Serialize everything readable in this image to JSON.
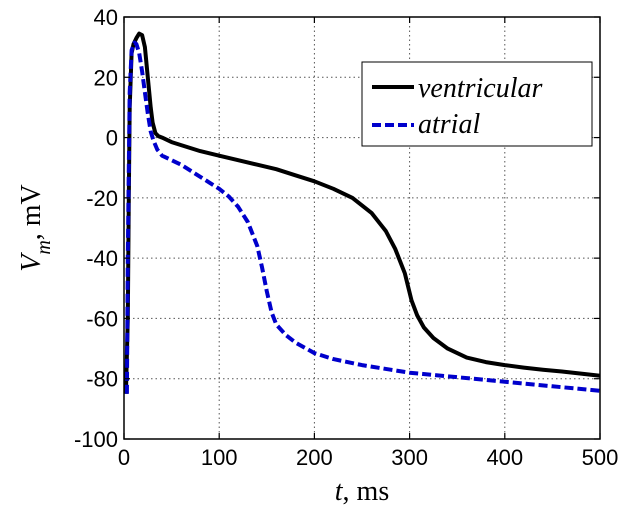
{
  "chart_data": {
    "type": "line",
    "xlabel_var": "t",
    "xlabel_unit": ", ms",
    "ylabel_var": "V",
    "ylabel_sub": "m",
    "ylabel_unit": ", mV",
    "xlim": [
      0,
      500
    ],
    "ylim": [
      -100,
      40
    ],
    "xticks": [
      0,
      100,
      200,
      300,
      400,
      500
    ],
    "yticks": [
      -100,
      -80,
      -60,
      -40,
      -20,
      0,
      20,
      40
    ],
    "grid": true,
    "legend_position": "top-right",
    "series": [
      {
        "name": "ventricular",
        "color": "#000000",
        "dash": "solid",
        "points": [
          [
            2,
            -85
          ],
          [
            4,
            -60
          ],
          [
            5,
            -20
          ],
          [
            6,
            10
          ],
          [
            8,
            28
          ],
          [
            10,
            31
          ],
          [
            13,
            33
          ],
          [
            16,
            34.5
          ],
          [
            19,
            34
          ],
          [
            22,
            30
          ],
          [
            25,
            20
          ],
          [
            28,
            10
          ],
          [
            30,
            5
          ],
          [
            33,
            1.5
          ],
          [
            36,
            0.5
          ],
          [
            40,
            0
          ],
          [
            50,
            -1.5
          ],
          [
            60,
            -2.5
          ],
          [
            80,
            -4.5
          ],
          [
            100,
            -6
          ],
          [
            120,
            -7.5
          ],
          [
            140,
            -9
          ],
          [
            160,
            -10.5
          ],
          [
            180,
            -12.5
          ],
          [
            200,
            -14.5
          ],
          [
            220,
            -17
          ],
          [
            240,
            -20
          ],
          [
            260,
            -25
          ],
          [
            275,
            -31
          ],
          [
            285,
            -37
          ],
          [
            295,
            -45
          ],
          [
            302,
            -54
          ],
          [
            308,
            -59
          ],
          [
            315,
            -63
          ],
          [
            325,
            -66.5
          ],
          [
            340,
            -70
          ],
          [
            360,
            -73
          ],
          [
            380,
            -74.5
          ],
          [
            400,
            -75.5
          ],
          [
            420,
            -76.3
          ],
          [
            440,
            -77
          ],
          [
            460,
            -77.6
          ],
          [
            480,
            -78.3
          ],
          [
            500,
            -79
          ]
        ]
      },
      {
        "name": "atrial",
        "color": "#0000cc",
        "dash": "dashed",
        "points": [
          [
            3,
            -85
          ],
          [
            4,
            -40
          ],
          [
            5,
            -10
          ],
          [
            6,
            15
          ],
          [
            8,
            29
          ],
          [
            11,
            31.5
          ],
          [
            13,
            31
          ],
          [
            16,
            28
          ],
          [
            19,
            22
          ],
          [
            22,
            15
          ],
          [
            25,
            8
          ],
          [
            28,
            2
          ],
          [
            31,
            -1
          ],
          [
            35,
            -4
          ],
          [
            40,
            -6
          ],
          [
            50,
            -7.5
          ],
          [
            60,
            -9
          ],
          [
            70,
            -11
          ],
          [
            80,
            -13
          ],
          [
            90,
            -15
          ],
          [
            100,
            -17
          ],
          [
            110,
            -19.5
          ],
          [
            120,
            -23
          ],
          [
            130,
            -28
          ],
          [
            140,
            -36
          ],
          [
            145,
            -43
          ],
          [
            150,
            -51
          ],
          [
            155,
            -58
          ],
          [
            160,
            -62
          ],
          [
            170,
            -65.5
          ],
          [
            180,
            -68
          ],
          [
            200,
            -71.5
          ],
          [
            220,
            -73.5
          ],
          [
            250,
            -75.5
          ],
          [
            280,
            -77
          ],
          [
            300,
            -78
          ],
          [
            350,
            -79.5
          ],
          [
            400,
            -81
          ],
          [
            450,
            -82.5
          ],
          [
            500,
            -84
          ]
        ]
      }
    ]
  }
}
